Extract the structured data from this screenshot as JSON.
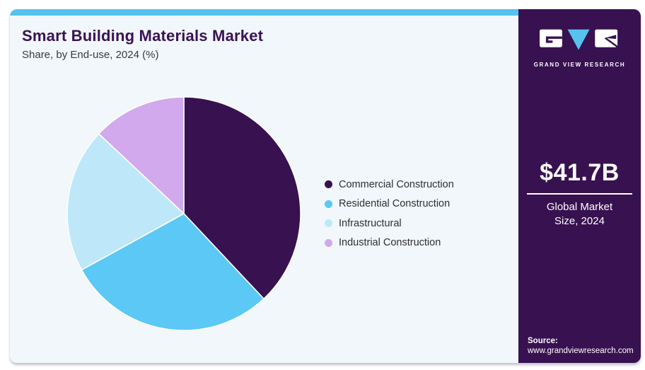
{
  "header": {
    "title": "Smart Building Materials Market",
    "subtitle": "Share, by End-use, 2024 (%)"
  },
  "chart_data": {
    "type": "pie",
    "title": "Smart Building Materials Market",
    "subtitle": "Share, by End-use, 2024 (%)",
    "unit": "%",
    "labels": [
      "Commercial Construction",
      "Residential Construction",
      "Infrastructural",
      "Industrial Construction"
    ],
    "values": [
      38,
      29,
      20,
      13
    ],
    "colors": [
      "#381150",
      "#5BC8F5",
      "#BEE8FA",
      "#D2A9EC"
    ],
    "legend_position": "right",
    "start_angle_deg": 0,
    "direction": "clockwise",
    "slice_stroke": "#FFFFFF"
  },
  "sidebar": {
    "brand": "GRAND VIEW RESEARCH",
    "logo_icon": "gvr-logo-icon",
    "market_size_value": "$41.7B",
    "market_size_label": "Global Market Size, 2024",
    "source_label": "Source:",
    "source_url": "www.grandviewresearch.com",
    "background_color": "#381150",
    "accent_color": "#55C3EE"
  },
  "theme": {
    "card_background": "#F1F7FA",
    "accent_bar_color": "#55C3EE",
    "title_color": "#3A1253",
    "text_color": "#3A3A3A"
  }
}
